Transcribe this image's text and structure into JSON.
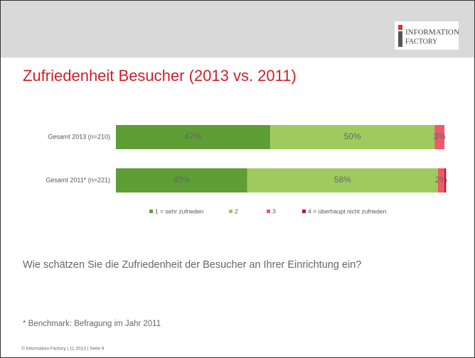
{
  "header": {
    "logo": [
      "INFORMATION",
      "FACTORY"
    ]
  },
  "chart_data": {
    "type": "bar",
    "orientation": "horizontal",
    "stacked": true,
    "title": "Zufriedenheit Besucher (2013 vs. 2011)",
    "categories": [
      "Gesamt 2013 (n=210)",
      "Gesamt 2011* (n=221)"
    ],
    "xlim": [
      0,
      100
    ],
    "legend": "bottom",
    "series": [
      {
        "name": "1 = sehr zufrieden",
        "color": "#5e9e34",
        "values": [
          47,
          40
        ],
        "value_labels": [
          "47%",
          "40%"
        ]
      },
      {
        "name": "2",
        "color": "#9fcb5e",
        "values": [
          50,
          58
        ],
        "value_labels": [
          "50%",
          "58%"
        ]
      },
      {
        "name": "3",
        "color": "#ee5a6a",
        "values": [
          3,
          2
        ],
        "value_labels": [
          "3%",
          "2%"
        ]
      },
      {
        "name": "4 = überhaupt nicht zufrieden",
        "color": "#c4122f",
        "values": [
          0,
          0.5
        ]
      }
    ]
  },
  "question": "Wie schätzen Sie die Zufriedenheit der Besucher an Ihrer Einrichtung ein?",
  "footnote": "* Benchmark: Befragung im Jahr 2011",
  "footer": "© Information Factory | 11.2013 | Seite 9"
}
